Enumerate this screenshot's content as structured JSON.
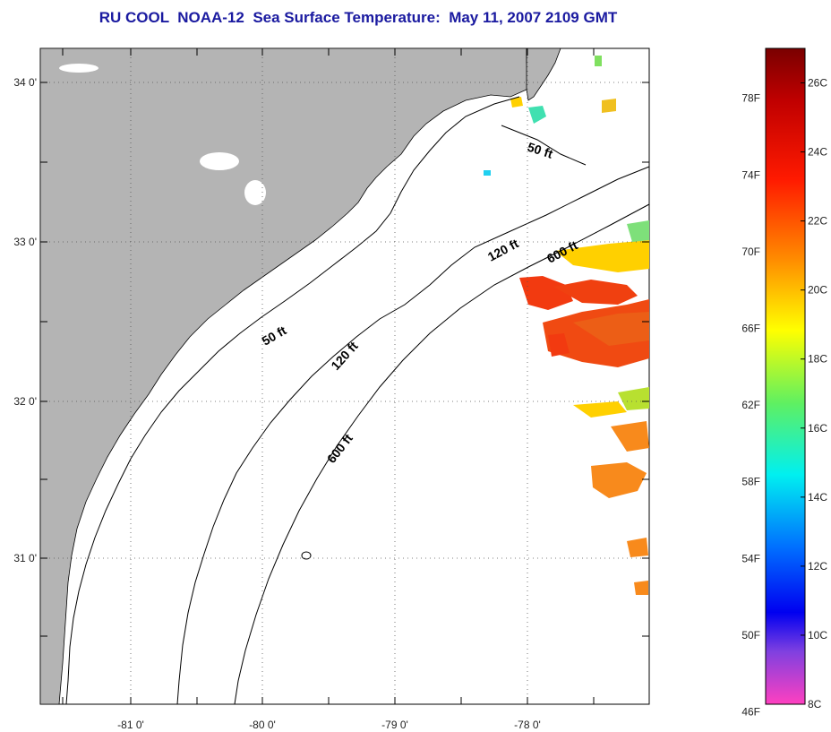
{
  "title": "RU COOL  NOAA-12  Sea Surface Temperature:  May 11, 2007 2109 GMT",
  "map": {
    "lon_ticks": [
      "-81 0'",
      "-80 0'",
      "-79 0'",
      "-78 0'"
    ],
    "lat_ticks": [
      "34 0'",
      "33 0'",
      "32 0'",
      "31 0'"
    ],
    "contour_labels": [
      "50 ft",
      "120 ft",
      "600 ft",
      "50 ft",
      "120 ft",
      "600 ft"
    ],
    "colors": {
      "land": "#b4b4b4",
      "ocean": "#ffffff",
      "contour": "#000000",
      "grid": "#555555"
    }
  },
  "colorbar": {
    "fahrenheit_labels": [
      "78F",
      "74F",
      "70F",
      "66F",
      "62F",
      "58F",
      "54F",
      "50F",
      "46F"
    ],
    "celsius_labels": [
      "26C",
      "24C",
      "22C",
      "20C",
      "18C",
      "16C",
      "14C",
      "12C",
      "10C",
      "8C"
    ],
    "range_c": [
      8,
      27
    ]
  }
}
